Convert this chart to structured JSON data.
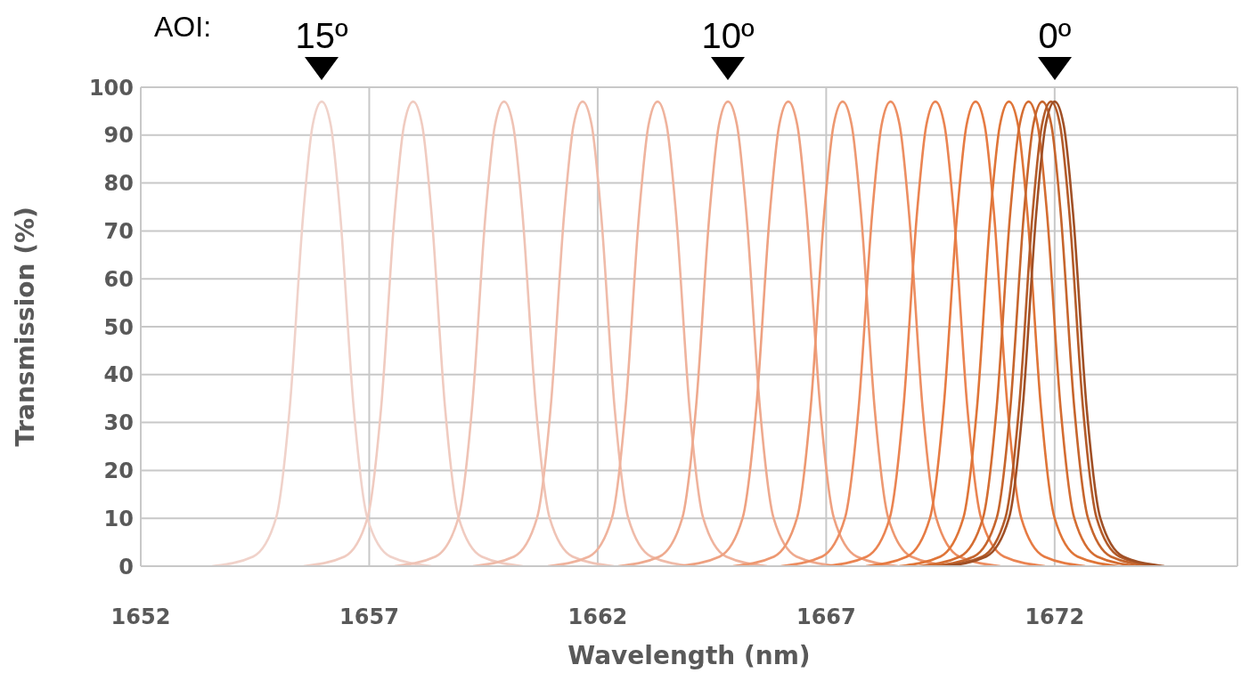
{
  "chart_data": {
    "type": "line",
    "xlabel": "Wavelength (nm)",
    "ylabel": "Transmission (%)",
    "xlim": [
      1652,
      1676
    ],
    "xticks": [
      1652,
      1657,
      1662,
      1667,
      1672
    ],
    "ylim": [
      0,
      100
    ],
    "yticks": [
      0,
      10,
      20,
      30,
      40,
      50,
      60,
      70,
      80,
      90,
      100
    ],
    "grid": true,
    "legend": false,
    "marker": "none",
    "line_style": "solid",
    "annotations": [
      "AOI:",
      "15º",
      "10º",
      "0º"
    ],
    "series": [
      {
        "color": "#f0d2ca",
        "x": [
          1653.56,
          1654.46,
          1654.96,
          1655.26,
          1655.56,
          1655.76,
          1655.96,
          1656.16,
          1656.36,
          1656.66,
          1656.96,
          1657.46,
          1658.36
        ],
        "values": [
          0,
          2,
          10,
          33,
          74,
          92,
          97,
          92,
          74,
          33,
          10,
          2,
          0
        ]
      },
      {
        "color": "#f0cbc0",
        "x": [
          1655.56,
          1656.46,
          1656.96,
          1657.26,
          1657.56,
          1657.76,
          1657.96,
          1658.16,
          1658.36,
          1658.66,
          1658.96,
          1659.46,
          1660.36
        ],
        "values": [
          0,
          2,
          10,
          33,
          74,
          92,
          97,
          92,
          74,
          33,
          10,
          2,
          0
        ]
      },
      {
        "color": "#efc3b5",
        "x": [
          1657.55,
          1658.45,
          1658.95,
          1659.25,
          1659.55,
          1659.75,
          1659.95,
          1660.15,
          1660.35,
          1660.65,
          1660.95,
          1661.45,
          1662.35
        ],
        "values": [
          0,
          2,
          10,
          33,
          74,
          92,
          97,
          92,
          74,
          33,
          10,
          2,
          0
        ]
      },
      {
        "color": "#efbba9",
        "x": [
          1659.27,
          1660.17,
          1660.67,
          1660.97,
          1661.27,
          1661.47,
          1661.67,
          1661.87,
          1662.07,
          1662.37,
          1662.67,
          1663.17,
          1664.07
        ],
        "values": [
          0,
          2,
          10,
          33,
          74,
          92,
          97,
          92,
          74,
          33,
          10,
          2,
          0
        ]
      },
      {
        "color": "#efb39d",
        "x": [
          1660.91,
          1661.81,
          1662.31,
          1662.61,
          1662.91,
          1663.11,
          1663.31,
          1663.51,
          1663.71,
          1664.01,
          1664.31,
          1664.81,
          1665.71
        ],
        "values": [
          0,
          2,
          10,
          33,
          74,
          92,
          97,
          92,
          74,
          33,
          10,
          2,
          0
        ]
      },
      {
        "color": "#eeaa8f",
        "x": [
          1662.45,
          1663.35,
          1663.85,
          1664.15,
          1664.45,
          1664.65,
          1664.85,
          1665.05,
          1665.25,
          1665.55,
          1665.85,
          1666.35,
          1667.25
        ],
        "values": [
          0,
          2,
          10,
          33,
          74,
          92,
          97,
          92,
          74,
          33,
          10,
          2,
          0
        ]
      },
      {
        "color": "#eea181",
        "x": [
          1663.77,
          1664.67,
          1665.17,
          1665.47,
          1665.77,
          1665.97,
          1666.17,
          1666.37,
          1666.57,
          1666.87,
          1667.17,
          1667.67,
          1668.57
        ],
        "values": [
          0,
          2,
          10,
          33,
          74,
          92,
          97,
          92,
          74,
          33,
          10,
          2,
          0
        ]
      },
      {
        "color": "#ed9871",
        "x": [
          1664.96,
          1665.86,
          1666.36,
          1666.66,
          1666.96,
          1667.16,
          1667.36,
          1667.56,
          1667.76,
          1668.06,
          1668.36,
          1668.86,
          1669.76
        ],
        "values": [
          0,
          2,
          10,
          33,
          74,
          92,
          97,
          92,
          74,
          33,
          10,
          2,
          0
        ]
      },
      {
        "color": "#ec8e62",
        "x": [
          1666.01,
          1666.91,
          1667.41,
          1667.71,
          1668.01,
          1668.21,
          1668.41,
          1668.61,
          1668.81,
          1669.11,
          1669.41,
          1669.91,
          1670.81
        ],
        "values": [
          0,
          2,
          10,
          33,
          74,
          92,
          97,
          92,
          74,
          33,
          10,
          2,
          0
        ]
      },
      {
        "color": "#ea8452",
        "x": [
          1666.99,
          1667.89,
          1668.39,
          1668.69,
          1668.99,
          1669.19,
          1669.39,
          1669.59,
          1669.79,
          1670.09,
          1670.39,
          1670.89,
          1671.79
        ],
        "values": [
          0,
          2,
          10,
          33,
          74,
          92,
          97,
          92,
          74,
          33,
          10,
          2,
          0
        ]
      },
      {
        "color": "#e67b43",
        "x": [
          1667.87,
          1668.77,
          1669.27,
          1669.57,
          1669.87,
          1670.07,
          1670.27,
          1670.47,
          1670.67,
          1670.97,
          1671.27,
          1671.77,
          1672.67
        ],
        "values": [
          0,
          2,
          10,
          33,
          74,
          92,
          97,
          92,
          74,
          33,
          10,
          2,
          0
        ]
      },
      {
        "color": "#df7538",
        "x": [
          1668.6,
          1669.5,
          1670,
          1670.3,
          1670.6,
          1670.8,
          1671,
          1671.2,
          1671.4,
          1671.7,
          1672,
          1672.5,
          1673.4
        ],
        "values": [
          0,
          2,
          10,
          33,
          74,
          92,
          97,
          92,
          74,
          33,
          10,
          2,
          0
        ]
      },
      {
        "color": "#d46d32",
        "x": [
          1669.03,
          1669.93,
          1670.43,
          1670.73,
          1671.03,
          1671.23,
          1671.43,
          1671.63,
          1671.83,
          1672.13,
          1672.43,
          1672.93,
          1673.83
        ],
        "values": [
          0,
          2,
          10,
          33,
          74,
          92,
          97,
          92,
          74,
          33,
          10,
          2,
          0
        ]
      },
      {
        "color": "#c6652d",
        "x": [
          1669.33,
          1670.23,
          1670.73,
          1671.03,
          1671.33,
          1671.53,
          1671.73,
          1671.93,
          1672.13,
          1672.43,
          1672.73,
          1673.23,
          1674.13
        ],
        "values": [
          0,
          2,
          10,
          33,
          74,
          92,
          97,
          92,
          74,
          33,
          10,
          2,
          0
        ]
      },
      {
        "color": "#b45b29",
        "x": [
          1669.52,
          1670.42,
          1670.92,
          1671.22,
          1671.52,
          1671.72,
          1671.92,
          1672.12,
          1672.32,
          1672.62,
          1672.92,
          1673.42,
          1674.32
        ],
        "values": [
          0,
          2,
          10,
          33,
          74,
          92,
          97,
          92,
          74,
          33,
          10,
          2,
          0
        ]
      },
      {
        "color": "#a05026",
        "x": [
          1669.6,
          1670.5,
          1671,
          1671.3,
          1671.6,
          1671.8,
          1672,
          1672.2,
          1672.4,
          1672.7,
          1673,
          1673.5,
          1674.4
        ],
        "values": [
          0,
          2,
          10,
          33,
          74,
          92,
          97,
          92,
          74,
          33,
          10,
          2,
          0
        ]
      }
    ]
  }
}
